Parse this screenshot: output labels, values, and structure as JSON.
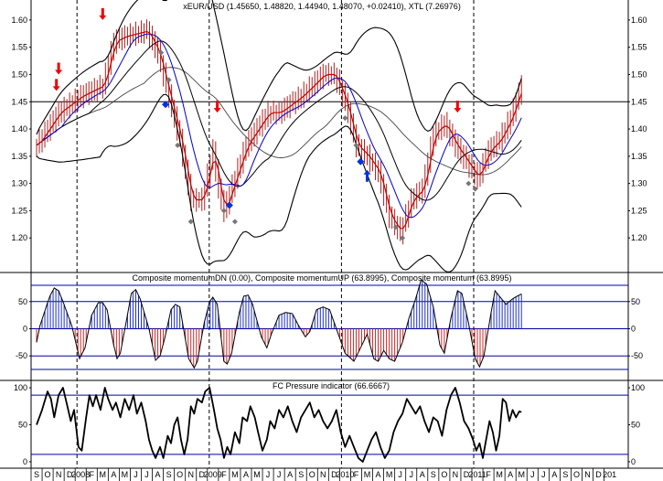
{
  "chart_data": [
    {
      "type": "candlestick",
      "title": "xEUR/USD (1.45650, 1.48820, 1.44940, 1.48070, +0.02410), XTL (7.26976)",
      "ylim": [
        1.15,
        1.63
      ],
      "yticks": [
        "1.20",
        "1.25",
        "1.30",
        "1.35",
        "1.40",
        "1.45",
        "1.50",
        "1.55",
        "1.60"
      ],
      "reference_line": 1.45,
      "x_axis_labels": [
        "S",
        "O",
        "N",
        "D",
        "2008",
        "F",
        "M",
        "A",
        "M",
        "J",
        "J",
        "A",
        "S",
        "O",
        "N",
        "D",
        "2009",
        "F",
        "M",
        "A",
        "M",
        "J",
        "J",
        "A",
        "S",
        "O",
        "N",
        "D",
        "2010",
        "F",
        "M",
        "A",
        "M",
        "J",
        "J",
        "A",
        "S",
        "O",
        "N",
        "D",
        "2011",
        "F",
        "M",
        "A",
        "M",
        "J",
        "J",
        "A",
        "S",
        "O",
        "N",
        "D",
        "201"
      ],
      "year_boundaries": [
        4,
        16,
        28,
        40
      ],
      "close_path": [
        [
          0,
          1.37
        ],
        [
          2,
          1.43
        ],
        [
          4,
          1.46
        ],
        [
          6,
          1.48
        ],
        [
          7,
          1.56
        ],
        [
          8,
          1.57
        ],
        [
          10,
          1.58
        ],
        [
          11,
          1.54
        ],
        [
          12,
          1.46
        ],
        [
          13,
          1.38
        ],
        [
          14,
          1.27
        ],
        [
          15,
          1.27
        ],
        [
          16,
          1.36
        ],
        [
          16.5,
          1.29
        ],
        [
          17,
          1.25
        ],
        [
          18,
          1.31
        ],
        [
          19,
          1.37
        ],
        [
          20,
          1.4
        ],
        [
          21,
          1.43
        ],
        [
          22,
          1.43
        ],
        [
          24,
          1.46
        ],
        [
          25,
          1.48
        ],
        [
          26,
          1.5
        ],
        [
          27,
          1.5
        ],
        [
          28,
          1.45
        ],
        [
          29,
          1.37
        ],
        [
          30,
          1.35
        ],
        [
          31,
          1.32
        ],
        [
          32,
          1.24
        ],
        [
          33,
          1.21
        ],
        [
          34,
          1.27
        ],
        [
          35,
          1.29
        ],
        [
          36,
          1.39
        ],
        [
          37,
          1.41
        ],
        [
          38,
          1.37
        ],
        [
          39,
          1.34
        ],
        [
          40,
          1.31
        ],
        [
          41,
          1.36
        ],
        [
          42,
          1.38
        ],
        [
          43,
          1.42
        ],
        [
          44,
          1.48
        ]
      ],
      "markers": {
        "down_arrows": [
          [
            1.8,
            1.47
          ],
          [
            2.0,
            1.5
          ],
          [
            6.0,
            1.6
          ],
          [
            16.4,
            1.43
          ],
          [
            38.2,
            1.43
          ]
        ],
        "up_arrows": [
          [
            30.0,
            1.325
          ]
        ],
        "blue_diamonds": [
          [
            11.7,
            1.445
          ],
          [
            17.5,
            1.26
          ],
          [
            29.4,
            1.34
          ]
        ],
        "gray_diamonds": [
          [
            11.3,
            1.54
          ],
          [
            12.0,
            1.49
          ],
          [
            12.8,
            1.37
          ],
          [
            14.0,
            1.23
          ],
          [
            17.0,
            1.25
          ],
          [
            18.0,
            1.23
          ],
          [
            28.0,
            1.42
          ],
          [
            29.0,
            1.37
          ],
          [
            32.6,
            1.22
          ],
          [
            33.2,
            1.2
          ],
          [
            39.2,
            1.3
          ],
          [
            39.8,
            1.29
          ]
        ]
      }
    },
    {
      "type": "histogram",
      "title": "Composite momentumDN (0.00), Composite momentumUP (63.8995), Composite momentum (63.8995)",
      "ylim": [
        -85,
        85
      ],
      "yticks": [
        "50",
        "0",
        "-50"
      ],
      "reference_lines": [
        80,
        50,
        0,
        -50,
        -75
      ],
      "path": [
        [
          0,
          -25
        ],
        [
          0.3,
          5
        ],
        [
          1.2,
          60
        ],
        [
          1.6,
          75
        ],
        [
          2.0,
          70
        ],
        [
          2.4,
          50
        ],
        [
          3.2,
          5
        ],
        [
          3.9,
          -55
        ],
        [
          4.4,
          -35
        ],
        [
          5.0,
          25
        ],
        [
          5.6,
          48
        ],
        [
          6.0,
          48
        ],
        [
          6.4,
          35
        ],
        [
          7.0,
          -30
        ],
        [
          7.3,
          -55
        ],
        [
          7.6,
          -45
        ],
        [
          8.2,
          20
        ],
        [
          8.6,
          65
        ],
        [
          9.0,
          72
        ],
        [
          9.4,
          55
        ],
        [
          10.2,
          0
        ],
        [
          10.8,
          -58
        ],
        [
          11.2,
          -50
        ],
        [
          11.6,
          -20
        ],
        [
          12.2,
          35
        ],
        [
          12.6,
          45
        ],
        [
          13.0,
          40
        ],
        [
          13.8,
          -55
        ],
        [
          14.3,
          -72
        ],
        [
          14.6,
          -60
        ],
        [
          15.2,
          10
        ],
        [
          15.7,
          50
        ],
        [
          16.0,
          58
        ],
        [
          16.4,
          45
        ],
        [
          17.0,
          -60
        ],
        [
          17.3,
          -65
        ],
        [
          17.7,
          -45
        ],
        [
          18.4,
          30
        ],
        [
          18.8,
          60
        ],
        [
          19.2,
          62
        ],
        [
          19.6,
          45
        ],
        [
          20.4,
          -15
        ],
        [
          20.9,
          -35
        ],
        [
          21.3,
          -10
        ],
        [
          22.0,
          25
        ],
        [
          22.6,
          30
        ],
        [
          23.2,
          28
        ],
        [
          23.8,
          5
        ],
        [
          24.4,
          -15
        ],
        [
          24.8,
          -5
        ],
        [
          25.4,
          35
        ],
        [
          26.0,
          40
        ],
        [
          26.6,
          35
        ],
        [
          27.2,
          0
        ],
        [
          28.0,
          -45
        ],
        [
          28.8,
          -60
        ],
        [
          29.4,
          -35
        ],
        [
          30.0,
          -10
        ],
        [
          30.6,
          -55
        ],
        [
          31.0,
          -60
        ],
        [
          31.5,
          -40
        ],
        [
          32.0,
          -55
        ],
        [
          32.5,
          -60
        ],
        [
          33.2,
          -25
        ],
        [
          33.8,
          20
        ],
        [
          34.4,
          55
        ],
        [
          34.9,
          90
        ],
        [
          35.4,
          82
        ],
        [
          36.0,
          40
        ],
        [
          36.6,
          -30
        ],
        [
          37.0,
          -45
        ],
        [
          37.6,
          20
        ],
        [
          38.2,
          70
        ],
        [
          38.6,
          65
        ],
        [
          39.2,
          10
        ],
        [
          39.8,
          -55
        ],
        [
          40.2,
          -70
        ],
        [
          40.6,
          -50
        ],
        [
          41.2,
          25
        ],
        [
          41.6,
          70
        ],
        [
          42.0,
          60
        ],
        [
          42.6,
          45
        ],
        [
          43.2,
          55
        ],
        [
          43.6,
          60
        ],
        [
          44.0,
          64
        ]
      ]
    },
    {
      "type": "line",
      "title": "FC Pressure indicator (66.6667)",
      "ylim": [
        -5,
        105
      ],
      "yticks": [
        "100",
        "50",
        "0"
      ],
      "reference_lines": [
        90,
        10
      ],
      "values": [
        [
          0,
          50
        ],
        [
          0.5,
          70
        ],
        [
          1.0,
          95
        ],
        [
          1.3,
          85
        ],
        [
          1.6,
          60
        ],
        [
          2.0,
          90
        ],
        [
          2.4,
          100
        ],
        [
          2.8,
          75
        ],
        [
          3.1,
          55
        ],
        [
          3.4,
          70
        ],
        [
          3.8,
          20
        ],
        [
          4.1,
          15
        ],
        [
          4.5,
          60
        ],
        [
          4.8,
          90
        ],
        [
          5.1,
          75
        ],
        [
          5.4,
          90
        ],
        [
          5.8,
          70
        ],
        [
          6.2,
          100
        ],
        [
          6.5,
          85
        ],
        [
          6.9,
          70
        ],
        [
          7.2,
          80
        ],
        [
          7.6,
          60
        ],
        [
          8.0,
          85
        ],
        [
          8.4,
          70
        ],
        [
          8.8,
          90
        ],
        [
          9.1,
          65
        ],
        [
          9.5,
          80
        ],
        [
          9.9,
          55
        ],
        [
          10.2,
          30
        ],
        [
          10.5,
          15
        ],
        [
          10.8,
          5
        ],
        [
          11.2,
          20
        ],
        [
          11.5,
          5
        ],
        [
          11.9,
          35
        ],
        [
          12.2,
          25
        ],
        [
          12.5,
          50
        ],
        [
          12.8,
          60
        ],
        [
          13.1,
          30
        ],
        [
          13.4,
          10
        ],
        [
          13.7,
          30
        ],
        [
          14.0,
          75
        ],
        [
          14.3,
          65
        ],
        [
          14.6,
          85
        ],
        [
          15.0,
          80
        ],
        [
          15.3,
          95
        ],
        [
          15.7,
          100
        ],
        [
          16.1,
          70
        ],
        [
          16.4,
          45
        ],
        [
          16.7,
          30
        ],
        [
          17.0,
          5
        ],
        [
          17.3,
          20
        ],
        [
          17.6,
          10
        ],
        [
          18.0,
          40
        ],
        [
          18.4,
          25
        ],
        [
          18.7,
          60
        ],
        [
          19.1,
          55
        ],
        [
          19.4,
          75
        ],
        [
          19.8,
          60
        ],
        [
          20.1,
          40
        ],
        [
          20.5,
          15
        ],
        [
          20.9,
          30
        ],
        [
          21.2,
          55
        ],
        [
          21.6,
          45
        ],
        [
          22.0,
          70
        ],
        [
          22.4,
          60
        ],
        [
          22.8,
          75
        ],
        [
          23.2,
          55
        ],
        [
          23.6,
          40
        ],
        [
          24.0,
          60
        ],
        [
          24.4,
          70
        ],
        [
          24.8,
          80
        ],
        [
          25.2,
          60
        ],
        [
          25.6,
          70
        ],
        [
          26.0,
          55
        ],
        [
          26.4,
          45
        ],
        [
          26.8,
          55
        ],
        [
          27.2,
          70
        ],
        [
          27.6,
          40
        ],
        [
          28.0,
          20
        ],
        [
          28.4,
          35
        ],
        [
          28.8,
          20
        ],
        [
          29.2,
          5
        ],
        [
          29.6,
          0
        ],
        [
          30.0,
          15
        ],
        [
          30.4,
          30
        ],
        [
          30.8,
          40
        ],
        [
          31.2,
          20
        ],
        [
          31.6,
          5
        ],
        [
          32.0,
          15
        ],
        [
          32.4,
          40
        ],
        [
          32.8,
          55
        ],
        [
          33.2,
          65
        ],
        [
          33.6,
          85
        ],
        [
          34.0,
          75
        ],
        [
          34.4,
          65
        ],
        [
          34.8,
          75
        ],
        [
          35.2,
          55
        ],
        [
          35.6,
          40
        ],
        [
          36.0,
          60
        ],
        [
          36.4,
          55
        ],
        [
          36.8,
          35
        ],
        [
          37.2,
          70
        ],
        [
          37.6,
          90
        ],
        [
          38.0,
          100
        ],
        [
          38.4,
          80
        ],
        [
          38.8,
          55
        ],
        [
          39.2,
          45
        ],
        [
          39.6,
          30
        ],
        [
          39.9,
          15
        ],
        [
          40.2,
          25
        ],
        [
          40.5,
          5
        ],
        [
          40.8,
          30
        ],
        [
          41.1,
          55
        ],
        [
          41.4,
          40
        ],
        [
          41.7,
          15
        ],
        [
          42.0,
          35
        ],
        [
          42.3,
          85
        ],
        [
          42.6,
          80
        ],
        [
          42.9,
          55
        ],
        [
          43.2,
          70
        ],
        [
          43.5,
          60
        ],
        [
          43.8,
          68
        ],
        [
          44.0,
          67
        ]
      ]
    }
  ],
  "colors": {
    "price_line": "#c00000",
    "bars": "#b02020",
    "ma_blue": "#0000cc",
    "ma_black": "#000000",
    "ma_gray": "#444444",
    "arrow": "#ee0000",
    "diamond_blue": "#0033dd",
    "diamond_gray": "#777777",
    "grid_blue": "#0000aa",
    "hist_up": "#1a2fc0",
    "hist_dn": "#cc2a2a"
  }
}
